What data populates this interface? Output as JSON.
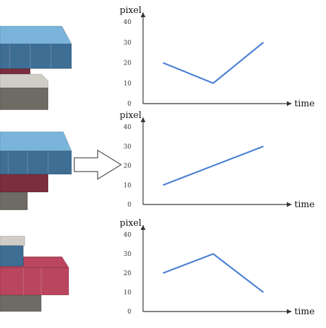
{
  "colors": {
    "line": "#4A7FD6",
    "axis": "#333333",
    "block_blue": "#3F6E94",
    "block_blue_top": "#7AB4DB",
    "block_dark_red": "#7A2E3E",
    "block_red": "#B9465E",
    "block_gray": "#6E6A64",
    "block_gray_top": "#CFCDC6"
  },
  "arrow_icon": "right-arrow-icon",
  "chart_data": [
    {
      "type": "line",
      "x": [
        1,
        2,
        3
      ],
      "y": [
        20,
        10,
        30
      ],
      "ylabel": "pixel",
      "xlabel": "time",
      "ylim": [
        0,
        40
      ],
      "yticks": [
        "0",
        "10",
        "20",
        "30",
        "40"
      ],
      "grid": false
    },
    {
      "type": "line",
      "x": [
        1,
        2,
        3
      ],
      "y": [
        10,
        20,
        30
      ],
      "ylabel": "pixel",
      "xlabel": "time",
      "ylim": [
        0,
        40
      ],
      "yticks": [
        "0",
        "10",
        "20",
        "30",
        "40"
      ],
      "grid": false
    },
    {
      "type": "line",
      "x": [
        1,
        2,
        3
      ],
      "y": [
        20,
        30,
        10
      ],
      "ylabel": "pixel",
      "xlabel": "time",
      "ylim": [
        0,
        40
      ],
      "yticks": [
        "0",
        "10",
        "20",
        "30",
        "40"
      ],
      "grid": false
    }
  ]
}
